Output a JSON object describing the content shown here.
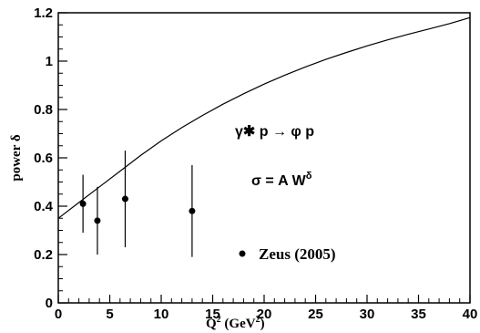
{
  "chart_data": {
    "type": "scatter",
    "xlabel_base": "Q",
    "xlabel_sup": "2",
    "xlabel_rest": " (GeV",
    "xlabel_sup2": "2",
    "xlabel_close": ")",
    "ylabel": "power δ",
    "xlim": [
      0,
      40
    ],
    "ylim": [
      0,
      1.2
    ],
    "x_ticks": [
      0,
      5,
      10,
      15,
      20,
      25,
      30,
      35,
      40
    ],
    "x_tick_labels": [
      "0",
      "5",
      "10",
      "15",
      "20",
      "25",
      "30",
      "35",
      "40"
    ],
    "y_ticks": [
      0,
      0.2,
      0.4,
      0.6,
      0.8,
      1.0,
      1.2
    ],
    "y_tick_labels": [
      "0",
      "0.2",
      "0.4",
      "0.6",
      "0.8",
      "1",
      "1.2"
    ],
    "series": [
      {
        "name": "Zeus (2005)",
        "kind": "points-with-errors",
        "points": [
          {
            "x": 2.4,
            "y": 0.41,
            "ylo": 0.29,
            "yhi": 0.53
          },
          {
            "x": 3.8,
            "y": 0.34,
            "ylo": 0.2,
            "yhi": 0.48
          },
          {
            "x": 6.5,
            "y": 0.43,
            "ylo": 0.23,
            "yhi": 0.63
          },
          {
            "x": 13.0,
            "y": 0.38,
            "ylo": 0.19,
            "yhi": 0.57
          }
        ]
      },
      {
        "kind": "curve",
        "points": [
          [
            0,
            0.35
          ],
          [
            2,
            0.415
          ],
          [
            4,
            0.48
          ],
          [
            6,
            0.545
          ],
          [
            8,
            0.61
          ],
          [
            10,
            0.67
          ],
          [
            12,
            0.725
          ],
          [
            14,
            0.775
          ],
          [
            16,
            0.822
          ],
          [
            18,
            0.865
          ],
          [
            20,
            0.905
          ],
          [
            22,
            0.942
          ],
          [
            24,
            0.976
          ],
          [
            26,
            1.007
          ],
          [
            28,
            1.036
          ],
          [
            30,
            1.063
          ],
          [
            32,
            1.088
          ],
          [
            34,
            1.111
          ],
          [
            36,
            1.133
          ],
          [
            38,
            1.155
          ],
          [
            40,
            1.18
          ]
        ]
      }
    ],
    "annotations": {
      "reaction": "γ✱ p → φ p",
      "formula_lhs": "σ = A W",
      "formula_sup": "δ",
      "legend_label": "Zeus (2005)"
    },
    "grid": false
  }
}
